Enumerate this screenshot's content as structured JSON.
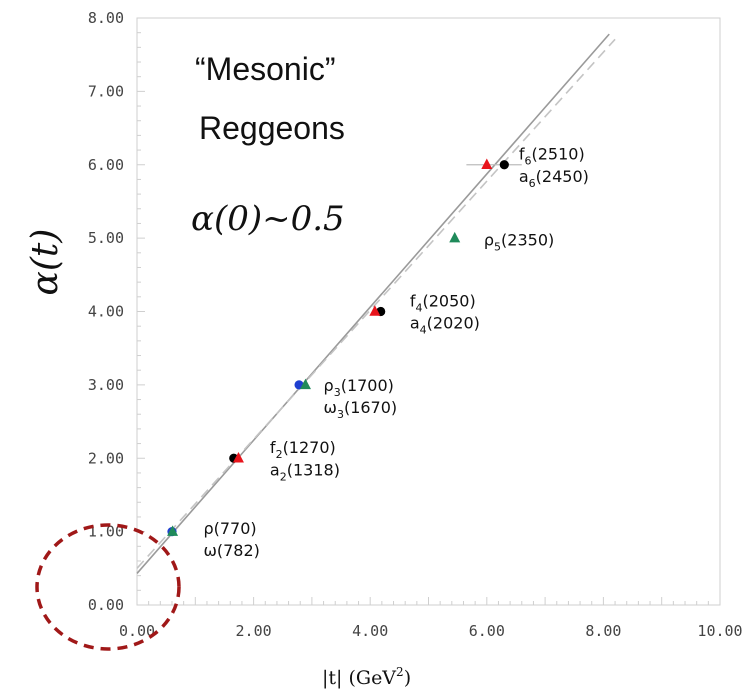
{
  "chart_data": {
    "type": "scatter",
    "title": "“Mesonic” Reggeons",
    "title_line1": "“Mesonic”",
    "title_line2": "Reggeons",
    "annotation": "α(0)~0.5",
    "ylabel": "α(t)",
    "xlabel_main": "|t|   (GeV",
    "xlabel_sup": "2",
    "xlabel_close": ")",
    "xlim": [
      0,
      10
    ],
    "ylim": [
      0,
      8
    ],
    "x_ticks": [
      "0.00",
      "2.00",
      "4.00",
      "6.00",
      "8.00",
      "10.00"
    ],
    "y_ticks": [
      "0.00",
      "1.00",
      "2.00",
      "3.00",
      "4.00",
      "5.00",
      "6.00",
      "7.00",
      "8.00"
    ],
    "grid": false,
    "series": [
      {
        "color": "#000000",
        "marker": "circle",
        "points": [
          {
            "x": 1.66,
            "y": 2
          },
          {
            "x": 4.18,
            "y": 4
          },
          {
            "x": 6.3,
            "y": 6
          }
        ]
      },
      {
        "color": "#e8141c",
        "marker": "triangle",
        "points": [
          {
            "x": 1.74,
            "y": 2
          },
          {
            "x": 4.08,
            "y": 4
          },
          {
            "x": 6.0,
            "y": 6
          }
        ]
      },
      {
        "color": "#1e3fd0",
        "marker": "circle",
        "points": [
          {
            "x": 0.6,
            "y": 1
          },
          {
            "x": 2.78,
            "y": 3
          }
        ]
      },
      {
        "color": "#1f8a5a",
        "marker": "triangle",
        "points": [
          {
            "x": 0.61,
            "y": 1
          },
          {
            "x": 2.89,
            "y": 3
          },
          {
            "x": 5.45,
            "y": 5
          }
        ]
      }
    ],
    "fit_lines": [
      {
        "style": "solid",
        "color": "#9a9a9a",
        "from": [
          0,
          0.43
        ],
        "to": [
          8.1,
          7.78
        ]
      },
      {
        "style": "dashed",
        "color": "#c4c4c4",
        "from": [
          0,
          0.5
        ],
        "to": [
          8.2,
          7.71
        ]
      }
    ],
    "error_bars": [
      {
        "y": 6,
        "x_from": 5.65,
        "x_to": 6.6
      }
    ],
    "labels": [
      {
        "x": 6.55,
        "y": 6.15,
        "base": "f",
        "sub": "6",
        "rest": "(2510)"
      },
      {
        "x": 6.55,
        "y": 5.85,
        "base": "a",
        "sub": "6",
        "rest": "(2450)"
      },
      {
        "x": 5.95,
        "y": 4.98,
        "base": "ρ",
        "sub": "5",
        "rest": "(2350)"
      },
      {
        "x": 4.68,
        "y": 4.15,
        "base": "f",
        "sub": "4",
        "rest": "(2050)"
      },
      {
        "x": 4.68,
        "y": 3.85,
        "base": "a",
        "sub": "4",
        "rest": "(2020)"
      },
      {
        "x": 3.2,
        "y": 3.0,
        "base": "ρ",
        "sub": "3",
        "rest": "(1700)"
      },
      {
        "x": 3.2,
        "y": 2.7,
        "base": "ω",
        "sub": "3",
        "rest": "(1670)"
      },
      {
        "x": 2.28,
        "y": 2.15,
        "base": "f",
        "sub": "2",
        "rest": "(1270)"
      },
      {
        "x": 2.28,
        "y": 1.85,
        "base": "a",
        "sub": "2",
        "rest": "(1318)"
      },
      {
        "x": 1.14,
        "y": 1.05,
        "base": "ρ",
        "sub": "",
        "rest": "(770)"
      },
      {
        "x": 1.14,
        "y": 0.75,
        "base": "ω",
        "sub": "",
        "rest": "(782)"
      }
    ],
    "highlight": {
      "shape": "dashed-circle",
      "color": "#a01818",
      "center": [
        0,
        0
      ]
    }
  }
}
